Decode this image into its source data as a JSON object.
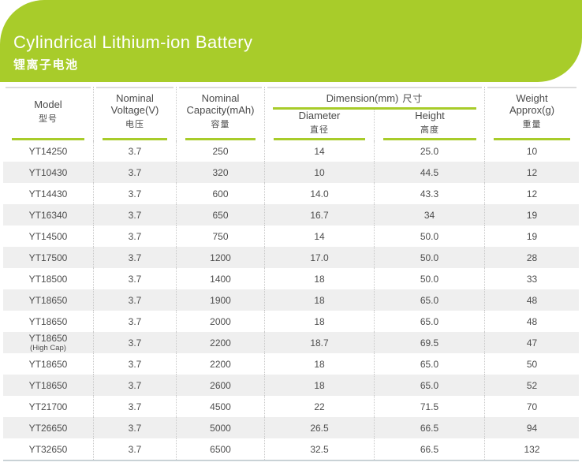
{
  "banner": {
    "title": "Cylindrical Lithium-ion Battery",
    "subtitle": "锂离子电池"
  },
  "colors": {
    "accent_green": "#a8cc2a",
    "row_alt_gray": "#efefef"
  },
  "header": {
    "model": {
      "en": "Model",
      "zh": "型号"
    },
    "voltage": {
      "en": "Nominal Voltage(V)",
      "zh": "电压"
    },
    "capacity": {
      "en": "Nominal Capacity(mAh)",
      "zh": "容量"
    },
    "dimension": {
      "en": "Dimension(mm)",
      "zh": "尺寸"
    },
    "diameter": {
      "en": "Diameter",
      "zh": "直径"
    },
    "height": {
      "en": "Height",
      "zh": "高度"
    },
    "weight": {
      "en": "Weight Approx(g)",
      "zh": "重量"
    }
  },
  "table": {
    "rows": [
      {
        "model": "YT14250",
        "voltage": "3.7",
        "capacity": "250",
        "diameter": "14",
        "height": "25.0",
        "weight": "10"
      },
      {
        "model": "YT10430",
        "voltage": "3.7",
        "capacity": "320",
        "diameter": "10",
        "height": "44.5",
        "weight": "12"
      },
      {
        "model": "YT14430",
        "voltage": "3.7",
        "capacity": "600",
        "diameter": "14.0",
        "height": "43.3",
        "weight": "12"
      },
      {
        "model": "YT16340",
        "voltage": "3.7",
        "capacity": "650",
        "diameter": "16.7",
        "height": "34",
        "weight": "19"
      },
      {
        "model": "YT14500",
        "voltage": "3.7",
        "capacity": "750",
        "diameter": "14",
        "height": "50.0",
        "weight": "19"
      },
      {
        "model": "YT17500",
        "voltage": "3.7",
        "capacity": "1200",
        "diameter": "17.0",
        "height": "50.0",
        "weight": "28"
      },
      {
        "model": "YT18500",
        "voltage": "3.7",
        "capacity": "1400",
        "diameter": "18",
        "height": "50.0",
        "weight": "33"
      },
      {
        "model": "YT18650",
        "voltage": "3.7",
        "capacity": "1900",
        "diameter": "18",
        "height": "65.0",
        "weight": "48"
      },
      {
        "model": "YT18650",
        "voltage": "3.7",
        "capacity": "2000",
        "diameter": "18",
        "height": "65.0",
        "weight": "48"
      },
      {
        "model": "YT18650",
        "model_note": "(High Cap)",
        "voltage": "3.7",
        "capacity": "2200",
        "diameter": "18.7",
        "height": "69.5",
        "weight": "47"
      },
      {
        "model": "YT18650",
        "voltage": "3.7",
        "capacity": "2200",
        "diameter": "18",
        "height": "65.0",
        "weight": "50"
      },
      {
        "model": "YT18650",
        "voltage": "3.7",
        "capacity": "2600",
        "diameter": "18",
        "height": "65.0",
        "weight": "52"
      },
      {
        "model": "YT21700",
        "voltage": "3.7",
        "capacity": "4500",
        "diameter": "22",
        "height": "71.5",
        "weight": "70"
      },
      {
        "model": "YT26650",
        "voltage": "3.7",
        "capacity": "5000",
        "diameter": "26.5",
        "height": "66.5",
        "weight": "94"
      },
      {
        "model": "YT32650",
        "voltage": "3.7",
        "capacity": "6500",
        "diameter": "32.5",
        "height": "66.5",
        "weight": "132"
      }
    ]
  }
}
